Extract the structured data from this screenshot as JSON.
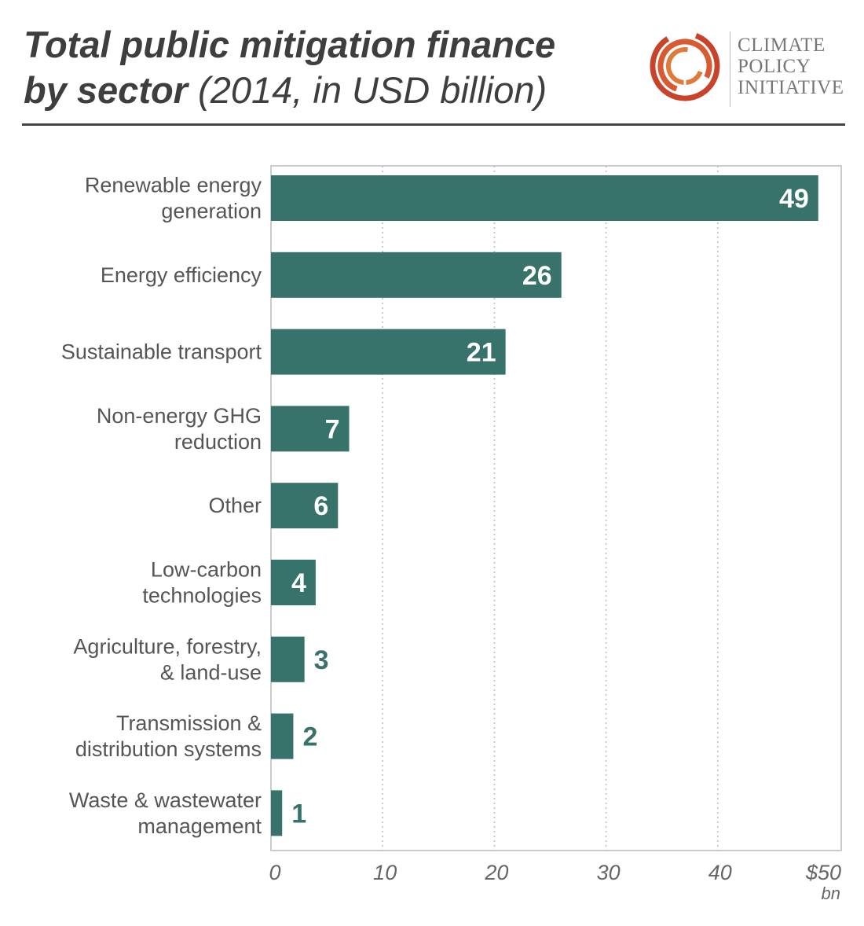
{
  "header": {
    "title_bold_line1": "Total public mitigation finance",
    "title_bold_line2": "by sector",
    "title_normal": "(2014, in USD billion)"
  },
  "logo": {
    "line1": "CLIMATE",
    "line2": "POLICY",
    "line3": "INITIATIVE",
    "mark_colors": [
      "#c9432a",
      "#e07a3a"
    ]
  },
  "chart_data": {
    "type": "bar",
    "orientation": "horizontal",
    "categories": [
      [
        "Renewable energy",
        "generation"
      ],
      [
        "Energy efficiency"
      ],
      [
        "Sustainable transport"
      ],
      [
        "Non-energy GHG",
        "reduction"
      ],
      [
        "Other"
      ],
      [
        "Low-carbon",
        "technologies"
      ],
      [
        "Agriculture, forestry,",
        "& land-use"
      ],
      [
        "Transmission &",
        "distribution systems"
      ],
      [
        "Waste & wastewater",
        "management"
      ]
    ],
    "values": [
      49,
      26,
      21,
      7,
      6,
      4,
      3,
      2,
      1
    ],
    "xlim": [
      0,
      50
    ],
    "ticks": [
      {
        "value": 0,
        "label": "0"
      },
      {
        "value": 10,
        "label": "10"
      },
      {
        "value": 20,
        "label": "20"
      },
      {
        "value": 30,
        "label": "30"
      },
      {
        "value": 40,
        "label": "40"
      },
      {
        "value": 50,
        "label": "$50"
      }
    ],
    "unit": "bn",
    "grid": true,
    "colors": {
      "bar": "#37736a",
      "label_inside": "#ffffff",
      "label_outside": "#37736a",
      "grid": "#bbbbbb",
      "frame": "#cccccc"
    }
  }
}
